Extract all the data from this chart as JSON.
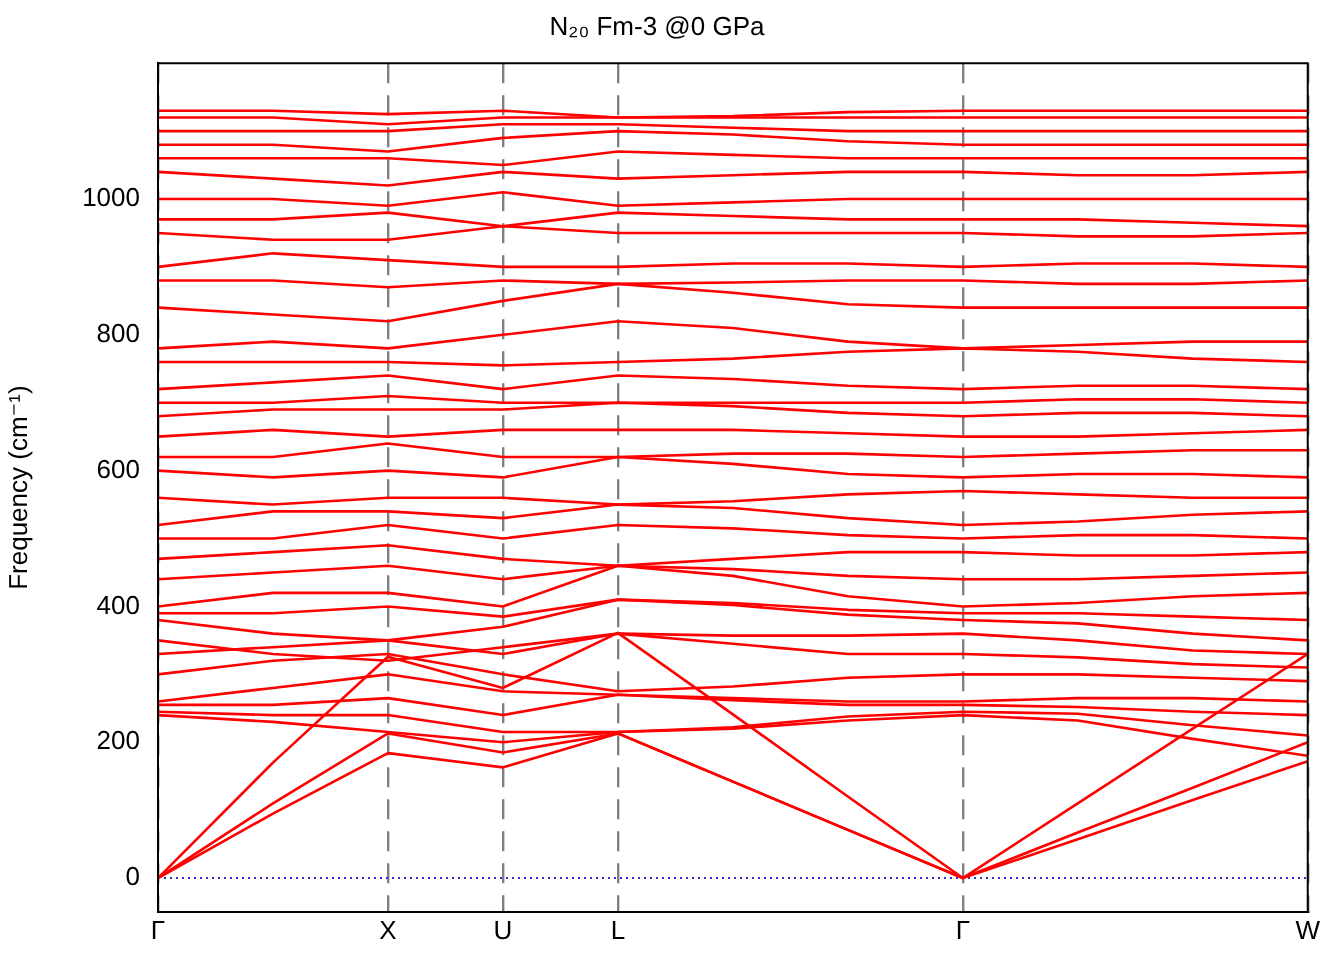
{
  "chart_data": {
    "type": "line",
    "title": "N₂₀ Fm-3 @0 GPa",
    "ylabel": "Frequency (cm⁻¹)",
    "categories": [
      "Γ",
      null,
      "X",
      "U",
      "L",
      null,
      null,
      "Γ",
      null,
      null,
      "W"
    ],
    "ylim": [
      -50,
      1200
    ],
    "yticks": [
      0,
      200,
      400,
      600,
      800,
      1000
    ],
    "grid": "x",
    "legend": false,
    "marker": "none",
    "line_style": "solid",
    "ref_lines": [
      {
        "axis": "y",
        "value": 0,
        "color": "#3333cc",
        "line_style": "dotted"
      }
    ],
    "series": [
      {
        "color": "#ff0000",
        "values": [
          0,
          95,
          184,
          163,
          213,
          142,
          71,
          0,
          57,
          115,
          172
        ]
      },
      {
        "color": "#ff0000",
        "values": [
          0,
          110,
          213,
          185,
          213,
          142,
          71,
          0,
          67,
          133,
          200
        ]
      },
      {
        "color": "#ff0000",
        "values": [
          0,
          170,
          326,
          280,
          361,
          241,
          120,
          0,
          110,
          220,
          330
        ]
      },
      {
        "color": "#ff0000",
        "values": [
          240,
          230,
          215,
          200,
          215,
          220,
          232,
          240,
          232,
          205,
          180
        ]
      },
      {
        "color": "#ff0000",
        "values": [
          245,
          240,
          240,
          215,
          215,
          222,
          238,
          245,
          242,
          225,
          210
        ]
      },
      {
        "color": "#ff0000",
        "values": [
          255,
          255,
          265,
          240,
          270,
          262,
          255,
          255,
          252,
          245,
          240
        ]
      },
      {
        "color": "#ff0000",
        "values": [
          260,
          280,
          300,
          275,
          270,
          265,
          260,
          260,
          265,
          265,
          260
        ]
      },
      {
        "color": "#ff0000",
        "values": [
          300,
          320,
          330,
          300,
          275,
          282,
          295,
          300,
          300,
          295,
          290
        ]
      },
      {
        "color": "#ff0000",
        "values": [
          330,
          340,
          350,
          330,
          360,
          345,
          330,
          330,
          325,
          315,
          310
        ]
      },
      {
        "color": "#ff0000",
        "values": [
          350,
          330,
          320,
          340,
          360,
          357,
          357,
          360,
          350,
          335,
          330
        ]
      },
      {
        "color": "#ff0000",
        "values": [
          380,
          360,
          350,
          370,
          410,
          402,
          388,
          380,
          375,
          360,
          350
        ]
      },
      {
        "color": "#ff0000",
        "values": [
          390,
          390,
          400,
          385,
          410,
          405,
          395,
          390,
          390,
          385,
          380
        ]
      },
      {
        "color": "#ff0000",
        "values": [
          400,
          420,
          420,
          400,
          460,
          445,
          415,
          400,
          405,
          415,
          420
        ]
      },
      {
        "color": "#ff0000",
        "values": [
          440,
          450,
          460,
          440,
          460,
          455,
          445,
          440,
          440,
          445,
          450
        ]
      },
      {
        "color": "#ff0000",
        "values": [
          470,
          480,
          490,
          470,
          460,
          470,
          480,
          480,
          475,
          475,
          480
        ]
      },
      {
        "color": "#ff0000",
        "values": [
          500,
          500,
          520,
          500,
          520,
          515,
          505,
          500,
          505,
          505,
          500
        ]
      },
      {
        "color": "#ff0000",
        "values": [
          520,
          540,
          540,
          530,
          550,
          545,
          530,
          520,
          525,
          535,
          540
        ]
      },
      {
        "color": "#ff0000",
        "values": [
          560,
          550,
          560,
          560,
          550,
          555,
          565,
          570,
          565,
          560,
          560
        ]
      },
      {
        "color": "#ff0000",
        "values": [
          600,
          590,
          600,
          590,
          620,
          610,
          595,
          590,
          595,
          595,
          590
        ]
      },
      {
        "color": "#ff0000",
        "values": [
          620,
          620,
          640,
          620,
          620,
          625,
          625,
          620,
          625,
          630,
          630
        ]
      },
      {
        "color": "#ff0000",
        "values": [
          650,
          660,
          650,
          660,
          660,
          660,
          655,
          650,
          650,
          655,
          660
        ]
      },
      {
        "color": "#ff0000",
        "values": [
          680,
          690,
          690,
          690,
          700,
          695,
          685,
          680,
          685,
          685,
          680
        ]
      },
      {
        "color": "#ff0000",
        "values": [
          700,
          700,
          710,
          700,
          700,
          700,
          700,
          700,
          705,
          705,
          700
        ]
      },
      {
        "color": "#ff0000",
        "values": [
          720,
          730,
          740,
          720,
          740,
          735,
          725,
          720,
          725,
          725,
          720
        ]
      },
      {
        "color": "#ff0000",
        "values": [
          760,
          760,
          760,
          755,
          760,
          765,
          775,
          780,
          775,
          765,
          760
        ]
      },
      {
        "color": "#ff0000",
        "values": [
          780,
          790,
          780,
          800,
          820,
          810,
          790,
          780,
          785,
          790,
          790
        ]
      },
      {
        "color": "#ff0000",
        "values": [
          840,
          830,
          820,
          850,
          875,
          862,
          845,
          840,
          840,
          840,
          840
        ]
      },
      {
        "color": "#ff0000",
        "values": [
          880,
          880,
          870,
          880,
          875,
          877,
          880,
          880,
          875,
          875,
          880
        ]
      },
      {
        "color": "#ff0000",
        "values": [
          900,
          920,
          910,
          900,
          900,
          905,
          905,
          900,
          905,
          905,
          900
        ]
      },
      {
        "color": "#ff0000",
        "values": [
          950,
          940,
          940,
          960,
          950,
          950,
          950,
          950,
          945,
          945,
          950
        ]
      },
      {
        "color": "#ff0000",
        "values": [
          970,
          970,
          980,
          960,
          980,
          975,
          970,
          970,
          970,
          965,
          960
        ]
      },
      {
        "color": "#ff0000",
        "values": [
          1000,
          1000,
          990,
          1010,
          990,
          995,
          1000,
          1000,
          1000,
          1000,
          1000
        ]
      },
      {
        "color": "#ff0000",
        "values": [
          1040,
          1030,
          1020,
          1040,
          1030,
          1035,
          1040,
          1040,
          1035,
          1035,
          1040
        ]
      },
      {
        "color": "#ff0000",
        "values": [
          1060,
          1060,
          1060,
          1050,
          1070,
          1065,
          1060,
          1060,
          1060,
          1060,
          1060
        ]
      },
      {
        "color": "#ff0000",
        "values": [
          1080,
          1080,
          1070,
          1090,
          1100,
          1095,
          1085,
          1080,
          1080,
          1080,
          1080
        ]
      },
      {
        "color": "#ff0000",
        "values": [
          1100,
          1100,
          1100,
          1110,
          1110,
          1105,
          1100,
          1100,
          1100,
          1100,
          1100
        ]
      },
      {
        "color": "#ff0000",
        "values": [
          1120,
          1120,
          1110,
          1120,
          1120,
          1120,
          1120,
          1120,
          1120,
          1120,
          1120
        ]
      },
      {
        "color": "#ff0000",
        "values": [
          1130,
          1130,
          1125,
          1130,
          1120,
          1122,
          1128,
          1130,
          1130,
          1130,
          1130
        ]
      }
    ]
  }
}
